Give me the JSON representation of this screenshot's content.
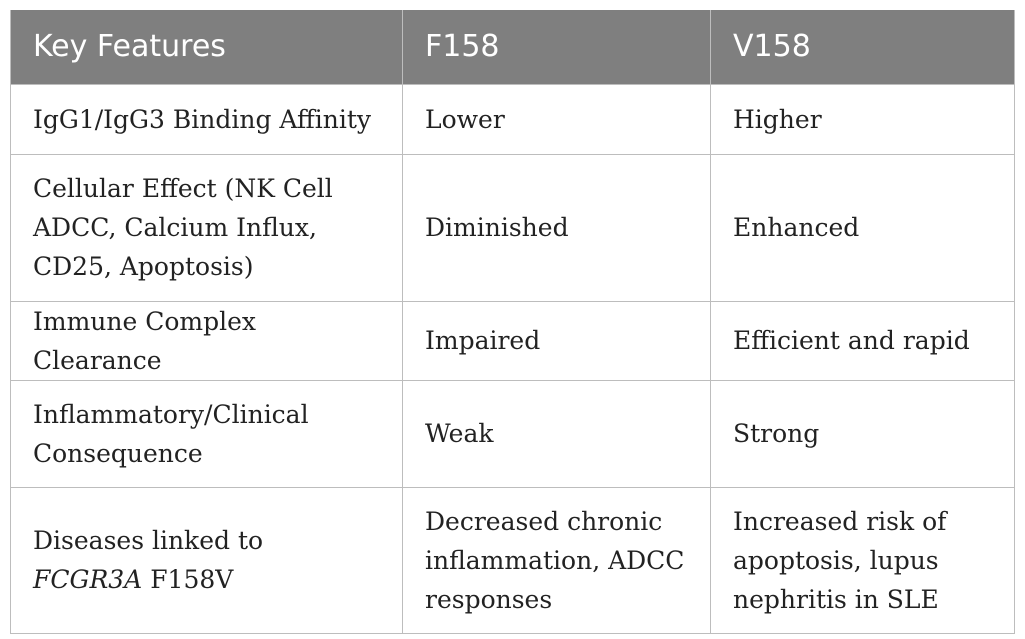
{
  "table": {
    "headers": [
      "Key Features",
      "F158",
      "V158"
    ],
    "rows": [
      {
        "feature": "IgG1/IgG3 Binding Affinity",
        "f158": "Lower",
        "v158": "Higher"
      },
      {
        "feature": "Cellular Effect (NK Cell ADCC, Calcium Influx, CD25, Apoptosis)",
        "f158": "Diminished",
        "v158": "Enhanced"
      },
      {
        "feature": "Immune Complex Clearance",
        "f158": "Impaired",
        "v158": "Efficient and rapid"
      },
      {
        "feature": "Inflammatory/Clinical Consequence",
        "f158": "Weak",
        "v158": "Strong"
      },
      {
        "feature_prefix": "Diseases linked to",
        "feature_gene": "FCGR3A",
        "feature_suffix": "F158V",
        "f158": "Decreased chronic inflammation, ADCC responses",
        "v158": "Increased risk of apoptosis, lupus nephritis in SLE"
      }
    ]
  },
  "colors": {
    "header_background": "#7f7f7f",
    "header_text": "#ffffff",
    "grid_lines": "#bdbdbd",
    "body_text": "#222222"
  }
}
